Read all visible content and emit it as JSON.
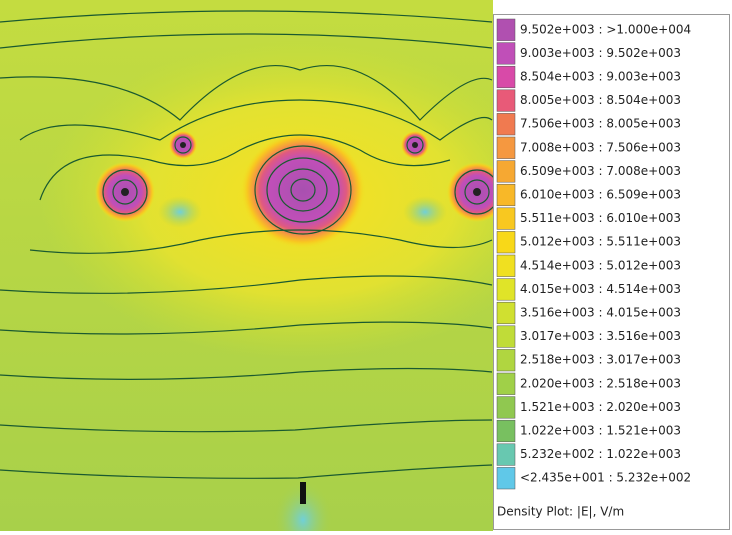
{
  "legend": {
    "entries": [
      {
        "label": "9.502e+003 : >1.000e+004",
        "color": "#b050b0"
      },
      {
        "label": "9.003e+003 : 9.502e+003",
        "color": "#c04fb8"
      },
      {
        "label": "8.504e+003 : 9.003e+003",
        "color": "#d84aa8"
      },
      {
        "label": "8.005e+003 : 8.504e+003",
        "color": "#e85a78"
      },
      {
        "label": "7.506e+003 : 8.005e+003",
        "color": "#f07a50"
      },
      {
        "label": "7.008e+003 : 7.506e+003",
        "color": "#f59840"
      },
      {
        "label": "6.509e+003 : 7.008e+003",
        "color": "#f6a832"
      },
      {
        "label": "6.010e+003 : 6.509e+003",
        "color": "#f8b828"
      },
      {
        "label": "5.511e+003 : 6.010e+003",
        "color": "#f8c820"
      },
      {
        "label": "5.012e+003 : 5.511e+003",
        "color": "#f8d818"
      },
      {
        "label": "4.514e+003 : 5.012e+003",
        "color": "#f0e020"
      },
      {
        "label": "4.015e+003 : 4.514e+003",
        "color": "#e0e428"
      },
      {
        "label": "3.516e+003 : 4.015e+003",
        "color": "#d0e030"
      },
      {
        "label": "3.017e+003 : 3.516e+003",
        "color": "#c0dc38"
      },
      {
        "label": "2.518e+003 : 3.017e+003",
        "color": "#b0d640"
      },
      {
        "label": "2.020e+003 : 2.518e+003",
        "color": "#a0d048"
      },
      {
        "label": "1.521e+003 : 2.020e+003",
        "color": "#90c850"
      },
      {
        "label": "1.022e+003 : 1.521e+003",
        "color": "#78c060"
      },
      {
        "label": "5.232e+002 : 1.022e+003",
        "color": "#68c8b0"
      },
      {
        "label": "<2.435e+001 : 5.232e+002",
        "color": "#60c8e8"
      }
    ],
    "caption": "Density Plot: |E|, V/m"
  }
}
